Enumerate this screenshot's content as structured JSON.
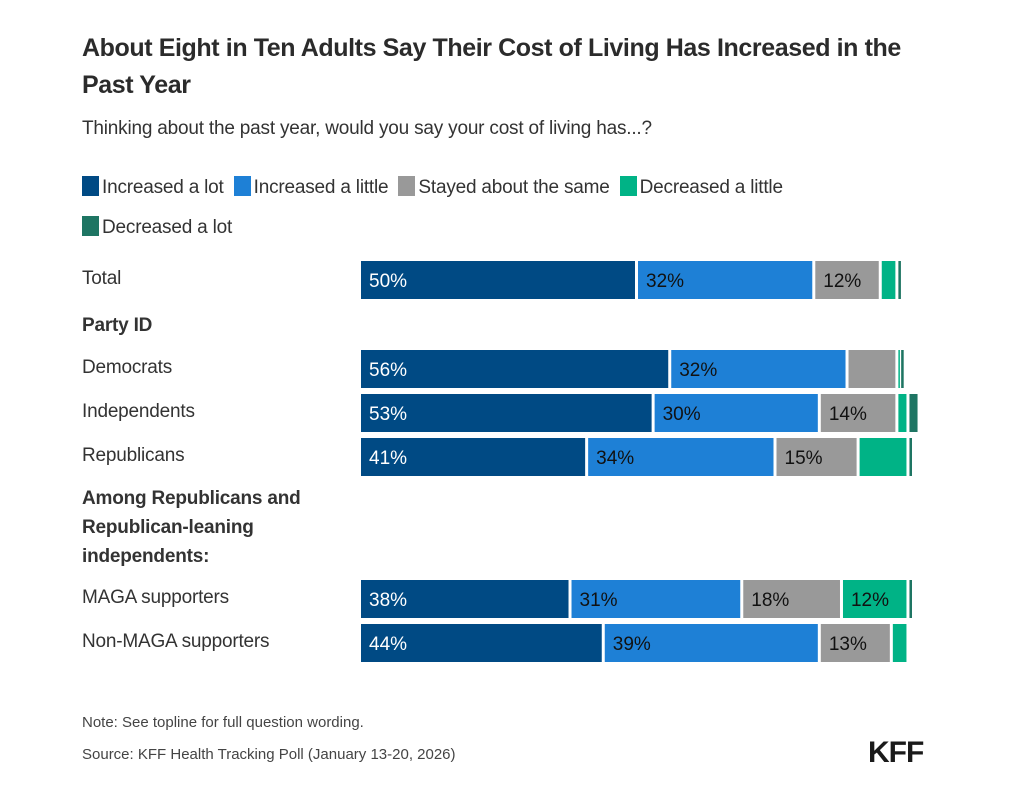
{
  "chart_data": {
    "type": "bar",
    "orientation": "horizontal",
    "stacked": true,
    "title": "About Eight in Ten Adults Say Their Cost of Living Has Increased in the Past Year",
    "subtitle": "Thinking about the past year, would you say your cost of living has...?",
    "legend_position": "top",
    "series": [
      {
        "name": "Increased a lot",
        "color": "#004a84"
      },
      {
        "name": "Increased a little",
        "color": "#1e80d6"
      },
      {
        "name": "Stayed about the same",
        "color": "#999999"
      },
      {
        "name": "Decreased a little",
        "color": "#00b386"
      },
      {
        "name": "Decreased a lot",
        "color": "#1e7563"
      }
    ],
    "rows": [
      {
        "label": "Total",
        "type": "bar",
        "values": [
          50,
          32,
          12,
          3,
          1
        ],
        "labels": [
          "50%",
          "32%",
          "12%",
          "",
          ""
        ]
      },
      {
        "label": "Party ID",
        "type": "group"
      },
      {
        "label": "Democrats",
        "type": "bar",
        "values": [
          56,
          32,
          9,
          0.5,
          1
        ],
        "labels": [
          "56%",
          "32%",
          "",
          "",
          ""
        ]
      },
      {
        "label": "Independents",
        "type": "bar",
        "values": [
          53,
          30,
          14,
          2,
          2
        ],
        "labels": [
          "53%",
          "30%",
          "14%",
          "",
          ""
        ]
      },
      {
        "label": "Republicans",
        "type": "bar",
        "values": [
          41,
          34,
          15,
          9,
          1
        ],
        "labels": [
          "41%",
          "34%",
          "15%",
          "",
          ""
        ]
      },
      {
        "label": "Among Republicans and Republican-leaning independents:",
        "type": "group"
      },
      {
        "label": "MAGA supporters",
        "type": "bar",
        "values": [
          38,
          31,
          18,
          12,
          1
        ],
        "labels": [
          "38%",
          "31%",
          "18%",
          "12%",
          ""
        ]
      },
      {
        "label": "Non-MAGA supporters",
        "type": "bar",
        "values": [
          44,
          39,
          13,
          3,
          0
        ],
        "labels": [
          "44%",
          "39%",
          "13%",
          "",
          ""
        ]
      }
    ],
    "xlim": [
      0,
      100
    ]
  },
  "footer": {
    "note": "Note: See topline for full question wording.",
    "source": "Source: KFF Health Tracking Poll (January 13-20, 2026)",
    "logo": "KFF"
  }
}
